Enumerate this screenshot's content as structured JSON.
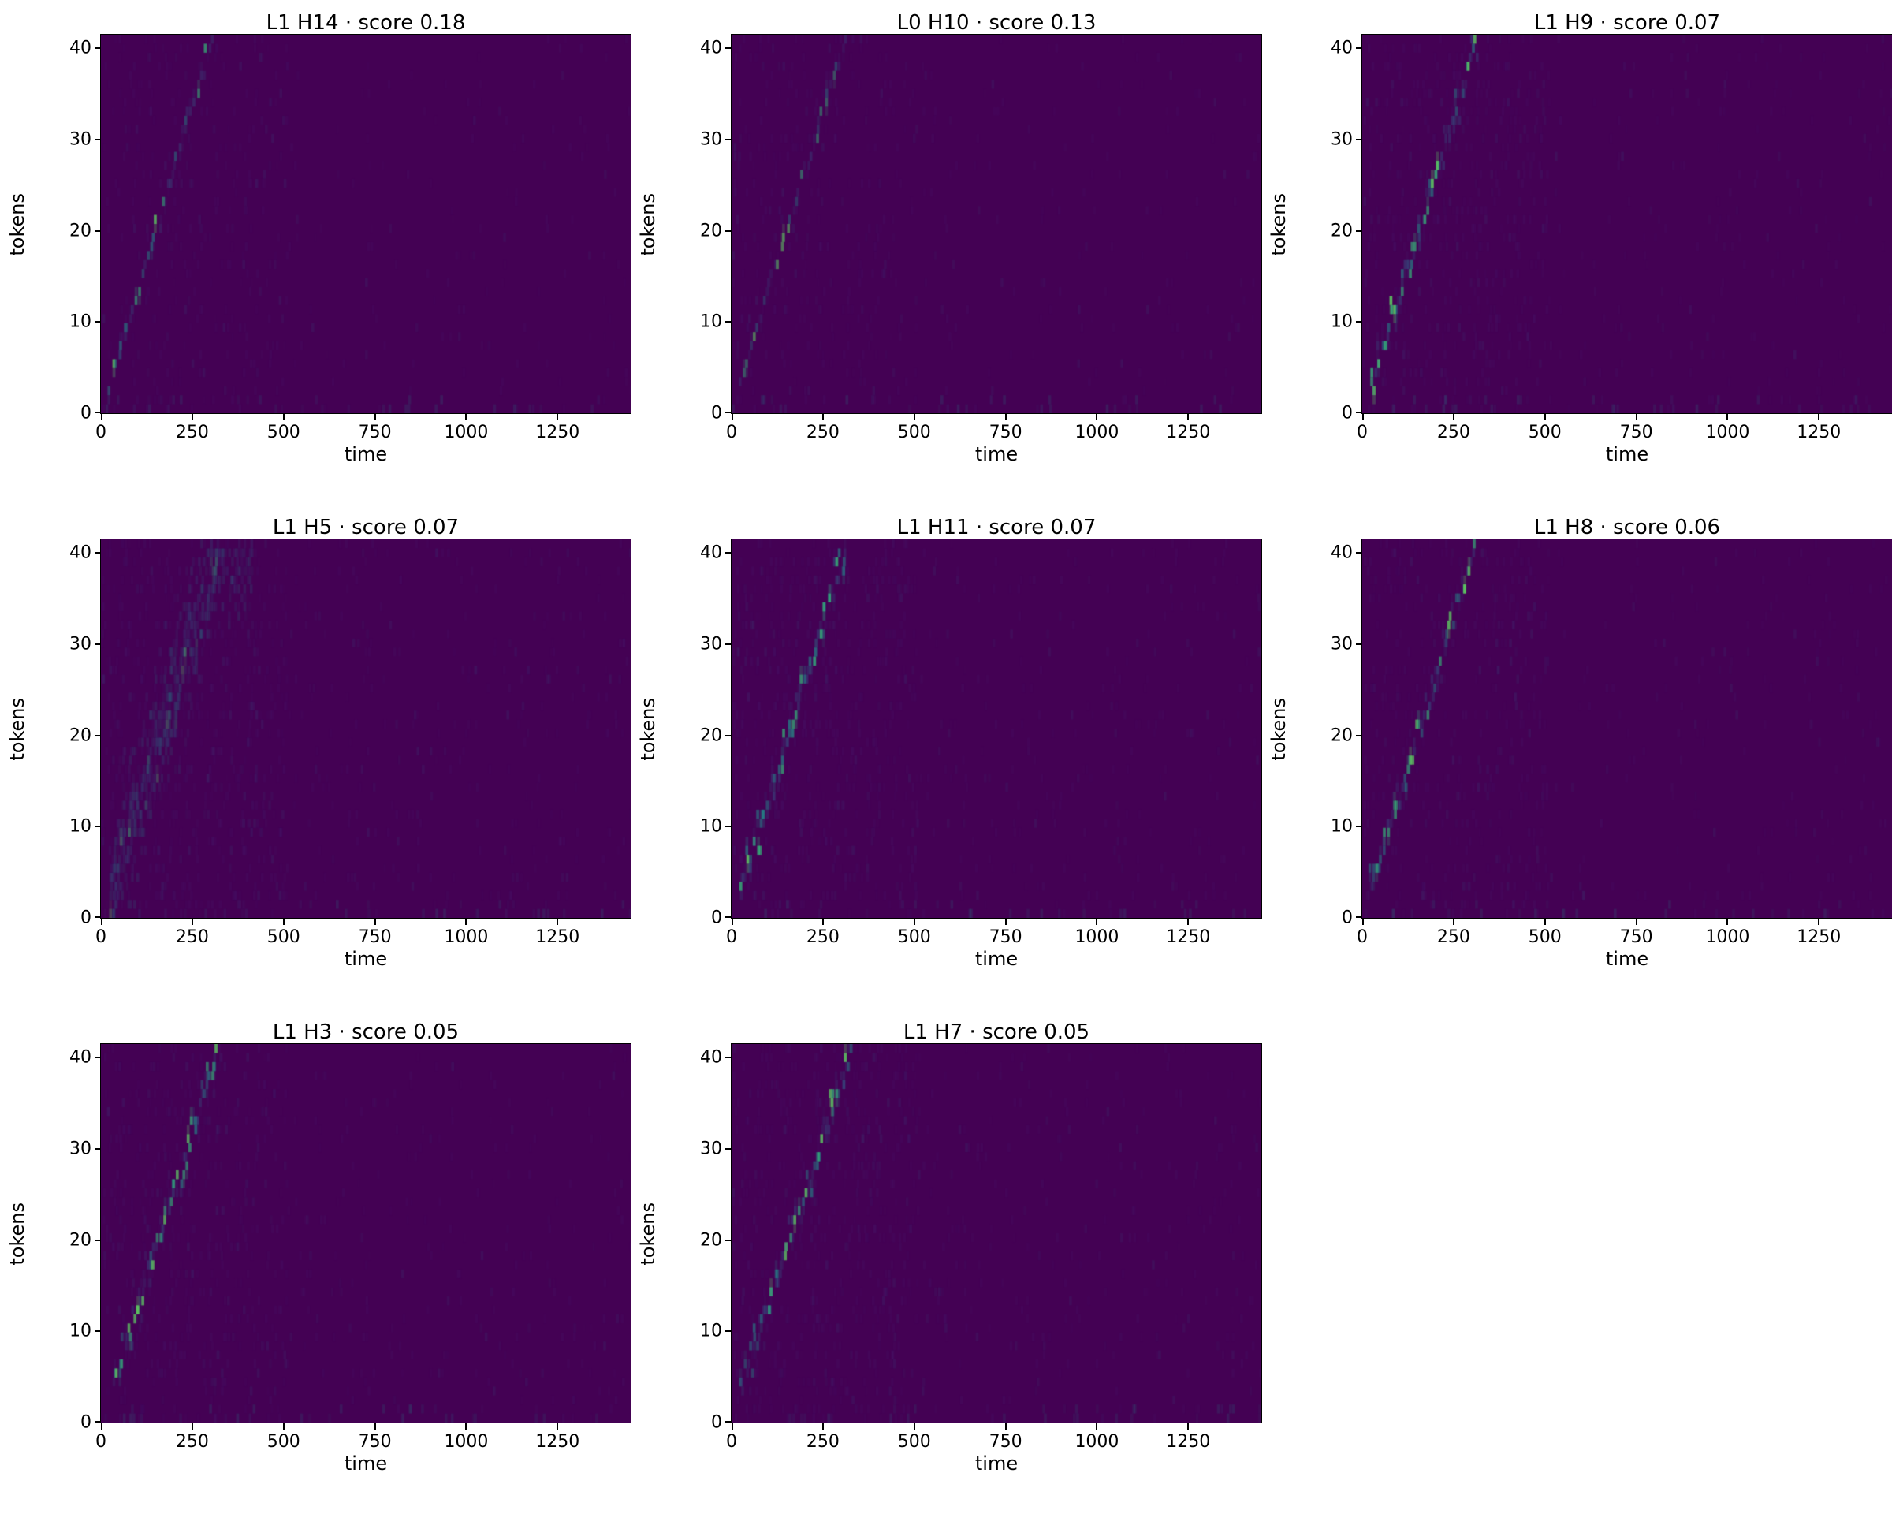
{
  "figure": {
    "background": "#ffffff",
    "description": "Grid of 8 attention heatmaps (tokens vs time), viridis colormap, each showing a faint diagonal alignment ridge"
  },
  "chart_data": {
    "type": "heatmap",
    "layout": {
      "columns": 3,
      "rows": 3,
      "grid_on": false
    },
    "axes": {
      "xlabel": "time",
      "ylabel": "tokens",
      "xticks": [
        0,
        250,
        500,
        750,
        1000,
        1250
      ],
      "yticks": [
        0,
        10,
        20,
        30,
        40
      ],
      "xlim": [
        0,
        1450
      ],
      "ylim": [
        0,
        41.5
      ]
    },
    "colormap": {
      "name": "viridis",
      "background": "#440154",
      "noise": "#472d7b",
      "ridge_low": "#31688e",
      "ridge_mid": "#21918c",
      "ridge_high": "#35b779",
      "ridge_peak": "#5ec962"
    },
    "panels": [
      {
        "title": "L1 H14 · score 0.18",
        "layer": "L1",
        "head": "H14",
        "score": 0.18,
        "ridge": {
          "t_start": 20,
          "t_end": 300,
          "token_start": 3,
          "token_end": 41
        },
        "style": {
          "alpha": 0.8,
          "jitter": 0.7,
          "density": 1,
          "noise": 450,
          "diffuse": 0
        }
      },
      {
        "title": "L0 H10 · score 0.13",
        "layer": "L0",
        "head": "H10",
        "score": 0.13,
        "ridge": {
          "t_start": 20,
          "t_end": 310,
          "token_start": 3,
          "token_end": 41
        },
        "style": {
          "alpha": 0.6,
          "jitter": 0.7,
          "density": 1,
          "noise": 450,
          "diffuse": 0
        }
      },
      {
        "title": "L1 H9 · score 0.07",
        "layer": "L1",
        "head": "H9",
        "score": 0.07,
        "ridge": {
          "t_start": 20,
          "t_end": 310,
          "token_start": 2,
          "token_end": 41
        },
        "style": {
          "alpha": 0.9,
          "jitter": 1.6,
          "density": 2,
          "noise": 700,
          "diffuse": 0
        }
      },
      {
        "title": "L1 H5 · score 0.07",
        "layer": "L1",
        "head": "H5",
        "score": 0.07,
        "ridge": {
          "t_start": 20,
          "t_end": 320,
          "token_start": 2,
          "token_end": 40
        },
        "style": {
          "alpha": 0.3,
          "jitter": 3.5,
          "density": 2,
          "noise": 900,
          "diffuse": 1
        }
      },
      {
        "title": "L1 H11 · score 0.07",
        "layer": "L1",
        "head": "H11",
        "score": 0.07,
        "ridge": {
          "t_start": 20,
          "t_end": 310,
          "token_start": 2,
          "token_end": 41
        },
        "style": {
          "alpha": 0.95,
          "jitter": 1.8,
          "density": 2,
          "noise": 800,
          "diffuse": 0
        }
      },
      {
        "title": "L1 H8 · score 0.06",
        "layer": "L1",
        "head": "H8",
        "score": 0.06,
        "ridge": {
          "t_start": 20,
          "t_end": 310,
          "token_start": 3,
          "token_end": 41
        },
        "style": {
          "alpha": 0.8,
          "jitter": 1.5,
          "density": 2,
          "noise": 600,
          "diffuse": 0
        }
      },
      {
        "title": "L1 H3 · score 0.05",
        "layer": "L1",
        "head": "H3",
        "score": 0.05,
        "ridge": {
          "t_start": 30,
          "t_end": 310,
          "token_start": 4,
          "token_end": 40
        },
        "style": {
          "alpha": 0.8,
          "jitter": 1.7,
          "density": 2,
          "noise": 700,
          "diffuse": 0
        }
      },
      {
        "title": "L1 H7 · score 0.05",
        "layer": "L1",
        "head": "H7",
        "score": 0.05,
        "ridge": {
          "t_start": 20,
          "t_end": 320,
          "token_start": 3,
          "token_end": 41
        },
        "style": {
          "alpha": 0.85,
          "jitter": 1.8,
          "density": 2,
          "noise": 800,
          "diffuse": 0
        }
      }
    ]
  }
}
